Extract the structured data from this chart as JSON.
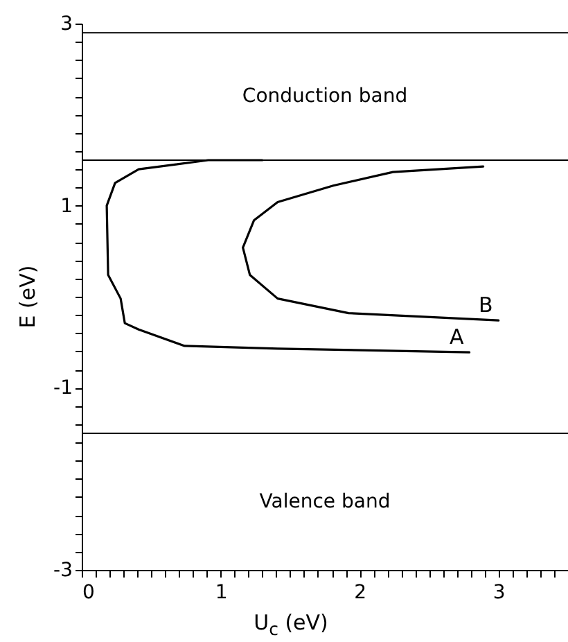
{
  "chart_data": {
    "type": "line",
    "xlabel": "U$_{c}$ (eV)",
    "ylabel": "E (eV)",
    "xlim": [
      0,
      3.5
    ],
    "ylim": [
      -3,
      3
    ],
    "xticks": [
      0,
      {
        "value": 0.1,
        "label": null
      },
      {
        "value": 0.2,
        "label": null
      },
      {
        "value": 0.3,
        "label": null
      },
      {
        "value": 0.4,
        "label": null
      },
      {
        "value": 0.5,
        "label": null
      },
      {
        "value": 0.6,
        "label": null
      },
      {
        "value": 0.7,
        "label": null
      },
      {
        "value": 0.8,
        "label": null
      },
      {
        "value": 0.9,
        "label": null
      },
      1,
      {
        "value": 1.1,
        "label": null
      },
      {
        "value": 1.2,
        "label": null
      },
      {
        "value": 1.3,
        "label": null
      },
      {
        "value": 1.4,
        "label": null
      },
      {
        "value": 1.5,
        "label": null
      },
      {
        "value": 1.6,
        "label": null
      },
      {
        "value": 1.7,
        "label": null
      },
      {
        "value": 1.8,
        "label": null
      },
      {
        "value": 1.9,
        "label": null
      },
      2,
      {
        "value": 2.1,
        "label": null
      },
      {
        "value": 2.2,
        "label": null
      },
      {
        "value": 2.3,
        "label": null
      },
      {
        "value": 2.4,
        "label": null
      },
      {
        "value": 2.5,
        "label": null
      },
      {
        "value": 2.6,
        "label": null
      },
      {
        "value": 2.7,
        "label": null
      },
      {
        "value": 2.8,
        "label": null
      },
      {
        "value": 2.9,
        "label": null
      },
      3,
      {
        "value": 3.1,
        "label": null
      },
      {
        "value": 3.2,
        "label": null
      },
      {
        "value": 3.3,
        "label": null
      },
      {
        "value": 3.4,
        "label": null
      }
    ],
    "yticks": [
      -3,
      {
        "value": -2.8,
        "label": null
      },
      {
        "value": -2.6,
        "label": null
      },
      {
        "value": -2.4,
        "label": null
      },
      {
        "value": -2.2,
        "label": null
      },
      {
        "value": -2,
        "label": null
      },
      {
        "value": -1.8,
        "label": null
      },
      {
        "value": -1.6,
        "label": null
      },
      {
        "value": -1.4,
        "label": null
      },
      {
        "value": -1.2,
        "label": null
      },
      -1,
      {
        "value": -0.8,
        "label": null
      },
      {
        "value": -0.6,
        "label": null
      },
      {
        "value": -0.4,
        "label": null
      },
      {
        "value": -0.2,
        "label": null
      },
      {
        "value": 0,
        "label": null
      },
      {
        "value": 0.2,
        "label": null
      },
      {
        "value": 0.4,
        "label": null
      },
      {
        "value": 0.6,
        "label": null
      },
      {
        "value": 0.8,
        "label": null
      },
      1,
      {
        "value": 1.2,
        "label": null
      },
      {
        "value": 1.4,
        "label": null
      },
      {
        "value": 1.6,
        "label": null
      },
      {
        "value": 1.8,
        "label": null
      },
      {
        "value": 2,
        "label": null
      },
      {
        "value": 2.2,
        "label": null
      },
      {
        "value": 2.4,
        "label": null
      },
      {
        "value": 2.6,
        "label": null
      },
      {
        "value": 2.8,
        "label": null
      },
      3
    ],
    "grid": false,
    "marker": "none",
    "line_style": "solid",
    "ref_lines": [
      {
        "axis": "y",
        "value": 2.9
      },
      {
        "axis": "y",
        "value": 1.5
      },
      {
        "axis": "y",
        "value": -1.5
      }
    ],
    "annotations": [
      "Conduction band",
      "Valence band"
    ],
    "series": [
      {
        "name": "A",
        "color": "#000000",
        "x": [
          1.3,
          0.91,
          0.41,
          0.24,
          0.18,
          0.19,
          0.28,
          0.31,
          0.41,
          0.74,
          1.41,
          2.79
        ],
        "values": [
          1.5,
          1.5,
          1.4,
          1.25,
          1.0,
          0.24,
          -0.02,
          -0.29,
          -0.36,
          -0.54,
          -0.57,
          -0.61
        ]
      },
      {
        "name": "B",
        "color": "#000000",
        "x": [
          2.89,
          2.24,
          1.81,
          1.41,
          1.24,
          1.16,
          1.21,
          1.41,
          1.92,
          3.0
        ],
        "values": [
          1.43,
          1.37,
          1.22,
          1.04,
          0.84,
          0.54,
          0.24,
          -0.02,
          -0.18,
          -0.26
        ]
      }
    ]
  }
}
